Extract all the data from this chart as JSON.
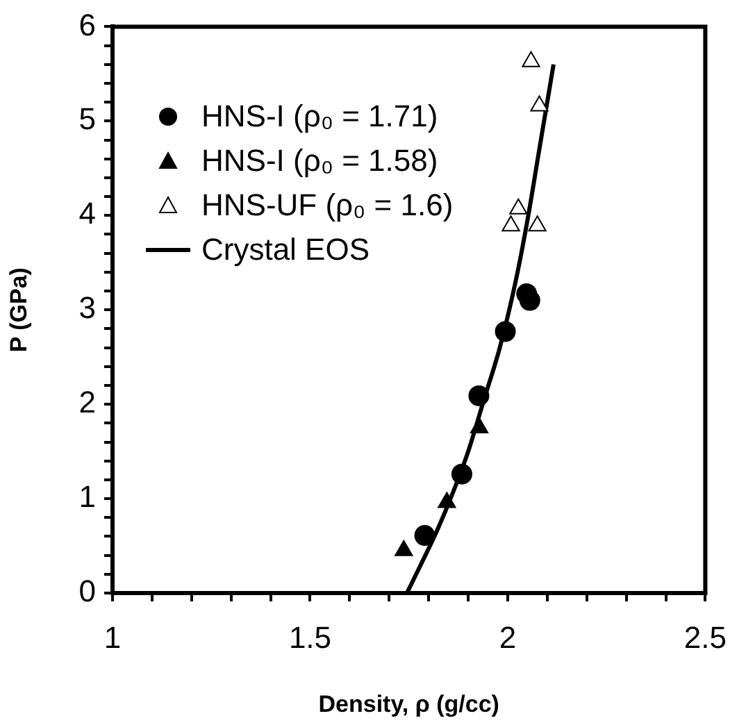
{
  "chart_data": {
    "type": "scatter",
    "xlabel": "Density, ρ (g/cc)",
    "ylabel": "P (GPa)",
    "xlim": [
      1,
      2.5
    ],
    "ylim": [
      0,
      6
    ],
    "xticks": [
      1,
      {
        "value": 1.1,
        "label": null
      },
      {
        "value": 1.2,
        "label": null
      },
      {
        "value": 1.3,
        "label": null
      },
      {
        "value": 1.4,
        "label": null
      },
      1.5,
      {
        "value": 1.6,
        "label": null
      },
      {
        "value": 1.7,
        "label": null
      },
      {
        "value": 1.8,
        "label": null
      },
      {
        "value": 1.9,
        "label": null
      },
      2,
      {
        "value": 2.1,
        "label": null
      },
      {
        "value": 2.2,
        "label": null
      },
      {
        "value": 2.3,
        "label": null
      },
      {
        "value": 2.4,
        "label": null
      },
      2.5
    ],
    "yticks": [
      0,
      {
        "value": 0.2,
        "label": null
      },
      {
        "value": 0.4,
        "label": null
      },
      {
        "value": 0.6,
        "label": null
      },
      {
        "value": 0.8,
        "label": null
      },
      1,
      {
        "value": 1.2,
        "label": null
      },
      {
        "value": 1.4,
        "label": null
      },
      {
        "value": 1.6,
        "label": null
      },
      {
        "value": 1.8,
        "label": null
      },
      2,
      {
        "value": 2.2,
        "label": null
      },
      {
        "value": 2.4,
        "label": null
      },
      {
        "value": 2.6,
        "label": null
      },
      {
        "value": 2.8,
        "label": null
      },
      3,
      {
        "value": 3.2,
        "label": null
      },
      {
        "value": 3.4,
        "label": null
      },
      {
        "value": 3.6,
        "label": null
      },
      {
        "value": 3.8,
        "label": null
      },
      4,
      {
        "value": 4.2,
        "label": null
      },
      {
        "value": 4.4,
        "label": null
      },
      {
        "value": 4.6,
        "label": null
      },
      {
        "value": 4.8,
        "label": null
      },
      5,
      {
        "value": 5.2,
        "label": null
      },
      {
        "value": 5.4,
        "label": null
      },
      {
        "value": 5.6,
        "label": null
      },
      {
        "value": 5.8,
        "label": null
      },
      6
    ],
    "grid": false,
    "legend": "top left",
    "series": [
      {
        "name": "HNS-I (ρ₀ = 1.71)",
        "marker": "circle",
        "color": "#000000",
        "x": [
          1.79,
          1.884,
          1.927,
          1.994,
          2.048,
          2.056
        ],
        "values": [
          0.61,
          1.26,
          2.09,
          2.77,
          3.17,
          3.1
        ]
      },
      {
        "name": "HNS-I (ρ₀ = 1.58)",
        "marker": "triangle",
        "color": "#000000",
        "x": [
          1.737,
          1.846,
          1.928
        ],
        "values": [
          0.45,
          0.96,
          1.75
        ]
      },
      {
        "name": "HNS-UF (ρ₀ = 1.6)",
        "marker": "triangle",
        "color": "#ffffff",
        "x": [
          2.059,
          2.08,
          2.027,
          2.008,
          2.075
        ],
        "values": [
          5.63,
          5.16,
          4.07,
          3.89,
          3.89
        ]
      },
      {
        "name": "Crystal EOS",
        "type": "line",
        "marker": "none",
        "line_style": "solid",
        "color": "#000000",
        "x": [
          1.745,
          1.78,
          1.82,
          1.86,
          1.9,
          1.94,
          1.98,
          2.02,
          2.05,
          2.08,
          2.116
        ],
        "values": [
          0,
          0.3,
          0.65,
          1.05,
          1.5,
          2.05,
          2.6,
          3.3,
          3.95,
          4.7,
          5.6
        ]
      }
    ]
  }
}
